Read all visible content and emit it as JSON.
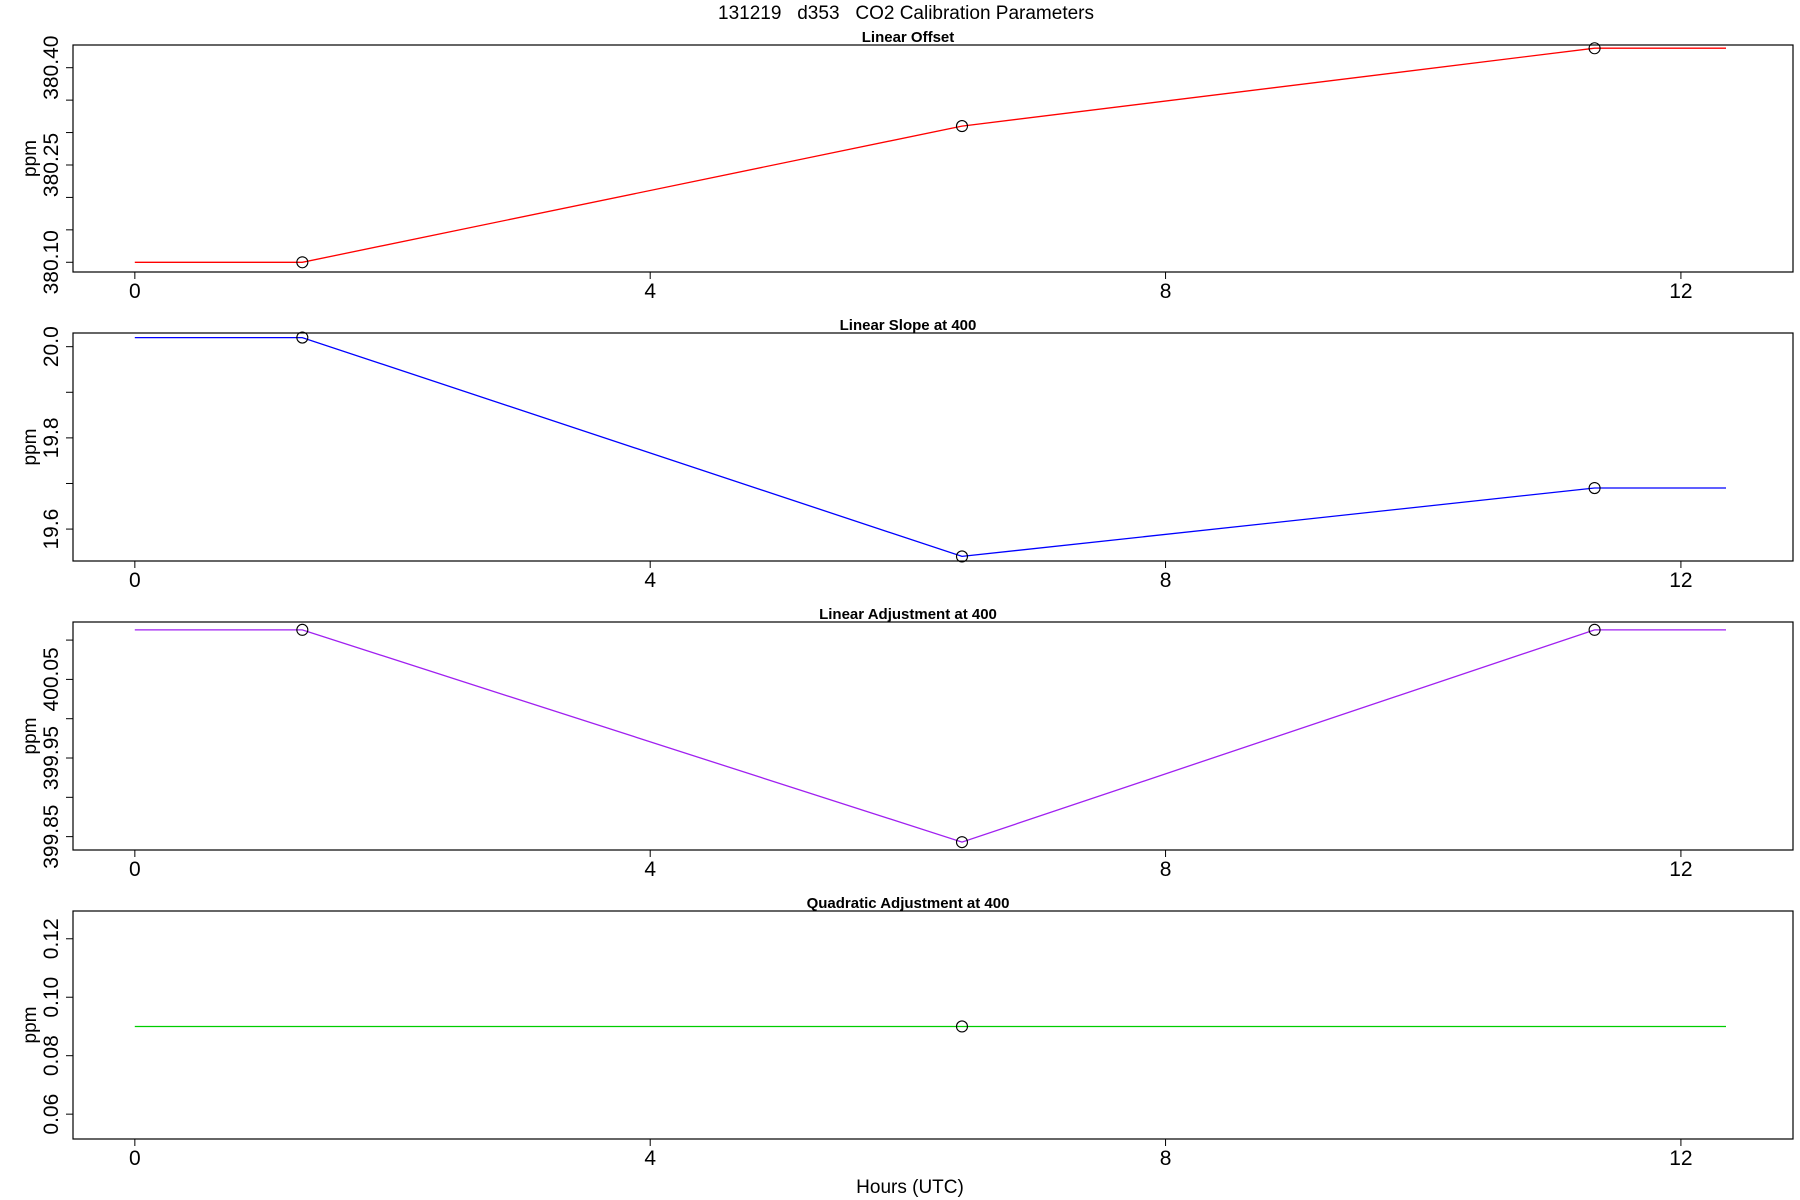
{
  "figure": {
    "title": "131219   d353   CO2 Calibration Parameters",
    "xlabel": "Hours (UTC)"
  },
  "chart_data": [
    {
      "type": "line",
      "title": "Linear Offset",
      "xlabel": "",
      "ylabel": "ppm",
      "color": "#ff0000",
      "xlim": [
        -0.48,
        12.87
      ],
      "ylim": [
        380.085,
        380.435
      ],
      "x_ticks": [
        "0",
        "4",
        "8",
        "12"
      ],
      "x_tick_values": [
        0,
        4,
        8,
        12
      ],
      "y_ticks": [
        "380.10",
        "380.25",
        "380.40"
      ],
      "y_tick_values": [
        380.1,
        380.25,
        380.4
      ],
      "y_minor_ticks": [
        380.15,
        380.2,
        380.3,
        380.35
      ],
      "x": [
        0,
        1.3,
        6.42,
        11.33,
        12.35
      ],
      "y": [
        380.1,
        380.1,
        380.31,
        380.43,
        380.43
      ],
      "markers": [
        {
          "x": 1.3,
          "y": 380.1
        },
        {
          "x": 6.42,
          "y": 380.31
        },
        {
          "x": 11.33,
          "y": 380.43
        }
      ]
    },
    {
      "type": "line",
      "title": "Linear Slope at 400",
      "xlabel": "",
      "ylabel": "ppm",
      "color": "#0000ff",
      "xlim": [
        -0.48,
        12.87
      ],
      "ylim": [
        19.53,
        20.03
      ],
      "x_ticks": [
        "0",
        "4",
        "8",
        "12"
      ],
      "x_tick_values": [
        0,
        4,
        8,
        12
      ],
      "y_ticks": [
        "19.6",
        "19.8",
        "20.0"
      ],
      "y_tick_values": [
        19.6,
        19.8,
        20.0
      ],
      "y_minor_ticks": [
        19.7,
        19.9
      ],
      "x": [
        0,
        1.3,
        6.42,
        11.33,
        12.35
      ],
      "y": [
        20.02,
        20.02,
        19.54,
        19.69,
        19.69
      ],
      "markers": [
        {
          "x": 1.3,
          "y": 20.02
        },
        {
          "x": 6.42,
          "y": 19.54
        },
        {
          "x": 11.33,
          "y": 19.69
        }
      ]
    },
    {
      "type": "line",
      "title": "Linear Adjustment at 400",
      "xlabel": "",
      "ylabel": "ppm",
      "color": "#a020f0",
      "xlim": [
        -0.48,
        12.87
      ],
      "ylim": [
        399.833,
        400.123
      ],
      "x_ticks": [
        "0",
        "4",
        "8",
        "12"
      ],
      "x_tick_values": [
        0,
        4,
        8,
        12
      ],
      "y_ticks": [
        "399.85",
        "399.95",
        "400.05"
      ],
      "y_tick_values": [
        399.85,
        399.95,
        400.05
      ],
      "y_minor_ticks": [
        399.9,
        400.0,
        400.1
      ],
      "x": [
        0,
        1.3,
        6.42,
        11.33,
        12.35
      ],
      "y": [
        400.113,
        400.113,
        399.843,
        400.113,
        400.113
      ],
      "markers": [
        {
          "x": 1.3,
          "y": 400.113
        },
        {
          "x": 6.42,
          "y": 399.843
        },
        {
          "x": 11.33,
          "y": 400.113
        }
      ]
    },
    {
      "type": "line",
      "title": "Quadratic Adjustment at 400",
      "xlabel": "",
      "ylabel": "ppm",
      "color": "#00cd00",
      "xlim": [
        -0.48,
        12.87
      ],
      "ylim": [
        0.0515,
        0.1295
      ],
      "x_ticks": [
        "0",
        "4",
        "8",
        "12"
      ],
      "x_tick_values": [
        0,
        4,
        8,
        12
      ],
      "y_ticks": [
        "0.06",
        "0.08",
        "0.10",
        "0.12"
      ],
      "y_tick_values": [
        0.06,
        0.08,
        0.1,
        0.12
      ],
      "y_minor_ticks": [],
      "x": [
        0,
        6.42,
        12.35
      ],
      "y": [
        0.09,
        0.09,
        0.09
      ],
      "markers": [
        {
          "x": 6.42,
          "y": 0.09
        }
      ]
    }
  ]
}
